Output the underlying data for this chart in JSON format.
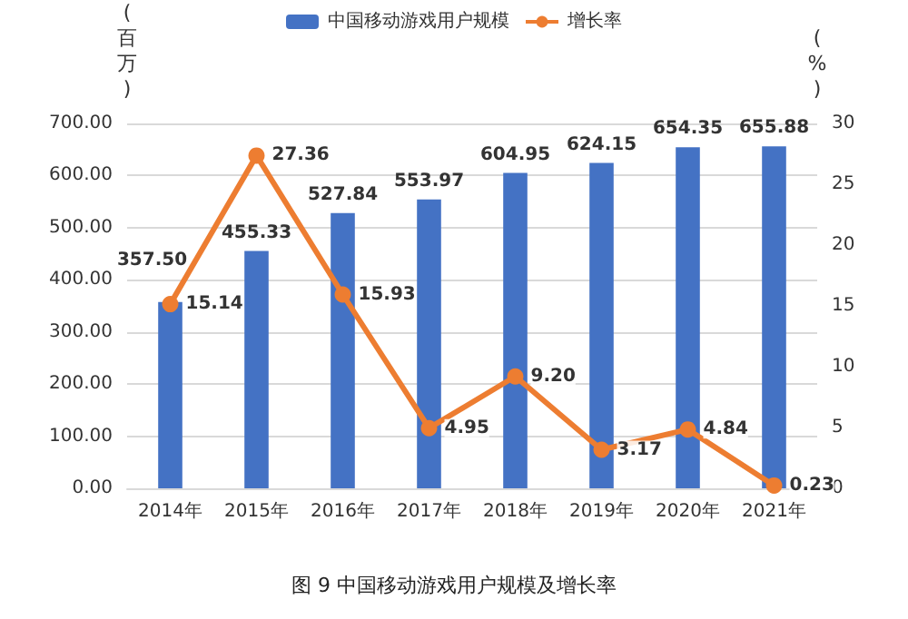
{
  "chart_data": {
    "type": "bar",
    "title": "图 9 中国移动游戏用户规模及增长率",
    "ylabel": "(百万)",
    "y2label": "(%)",
    "categories": [
      "2014年",
      "2015年",
      "2016年",
      "2017年",
      "2018年",
      "2019年",
      "2020年",
      "2021年"
    ],
    "series": [
      {
        "name": "中国移动游戏用户规模",
        "color": "#4472c4",
        "values": [
          357.5,
          455.33,
          527.84,
          553.97,
          604.95,
          624.15,
          654.35,
          655.88
        ],
        "value_labels": [
          "357.50",
          "455.33",
          "527.84",
          "553.97",
          "604.95",
          "624.15",
          "654.35",
          "655.88"
        ]
      },
      {
        "name": "增长率",
        "type": "line",
        "axis": "y2",
        "color": "#ed7d31",
        "values": [
          15.14,
          27.36,
          15.93,
          4.95,
          9.2,
          3.17,
          4.84,
          0.23
        ],
        "value_labels": [
          "15.14",
          "27.36",
          "15.93",
          "4.95",
          "9.20",
          "3.17",
          "4.84",
          "0.23"
        ]
      }
    ],
    "ylim": [
      0,
      700
    ],
    "yticks": [
      {
        "value": 0,
        "label": "0.00"
      },
      {
        "value": 100,
        "label": "100.00"
      },
      {
        "value": 200,
        "label": "200.00"
      },
      {
        "value": 300,
        "label": "300.00"
      },
      {
        "value": 400,
        "label": "400.00"
      },
      {
        "value": 500,
        "label": "500.00"
      },
      {
        "value": 600,
        "label": "600.00"
      },
      {
        "value": 700,
        "label": "700.00"
      }
    ],
    "y2lim": [
      0,
      30
    ],
    "y2ticks": [
      0,
      5,
      10,
      15,
      20,
      25,
      30
    ],
    "grid": "y",
    "legend": "top",
    "marker": "circle"
  }
}
